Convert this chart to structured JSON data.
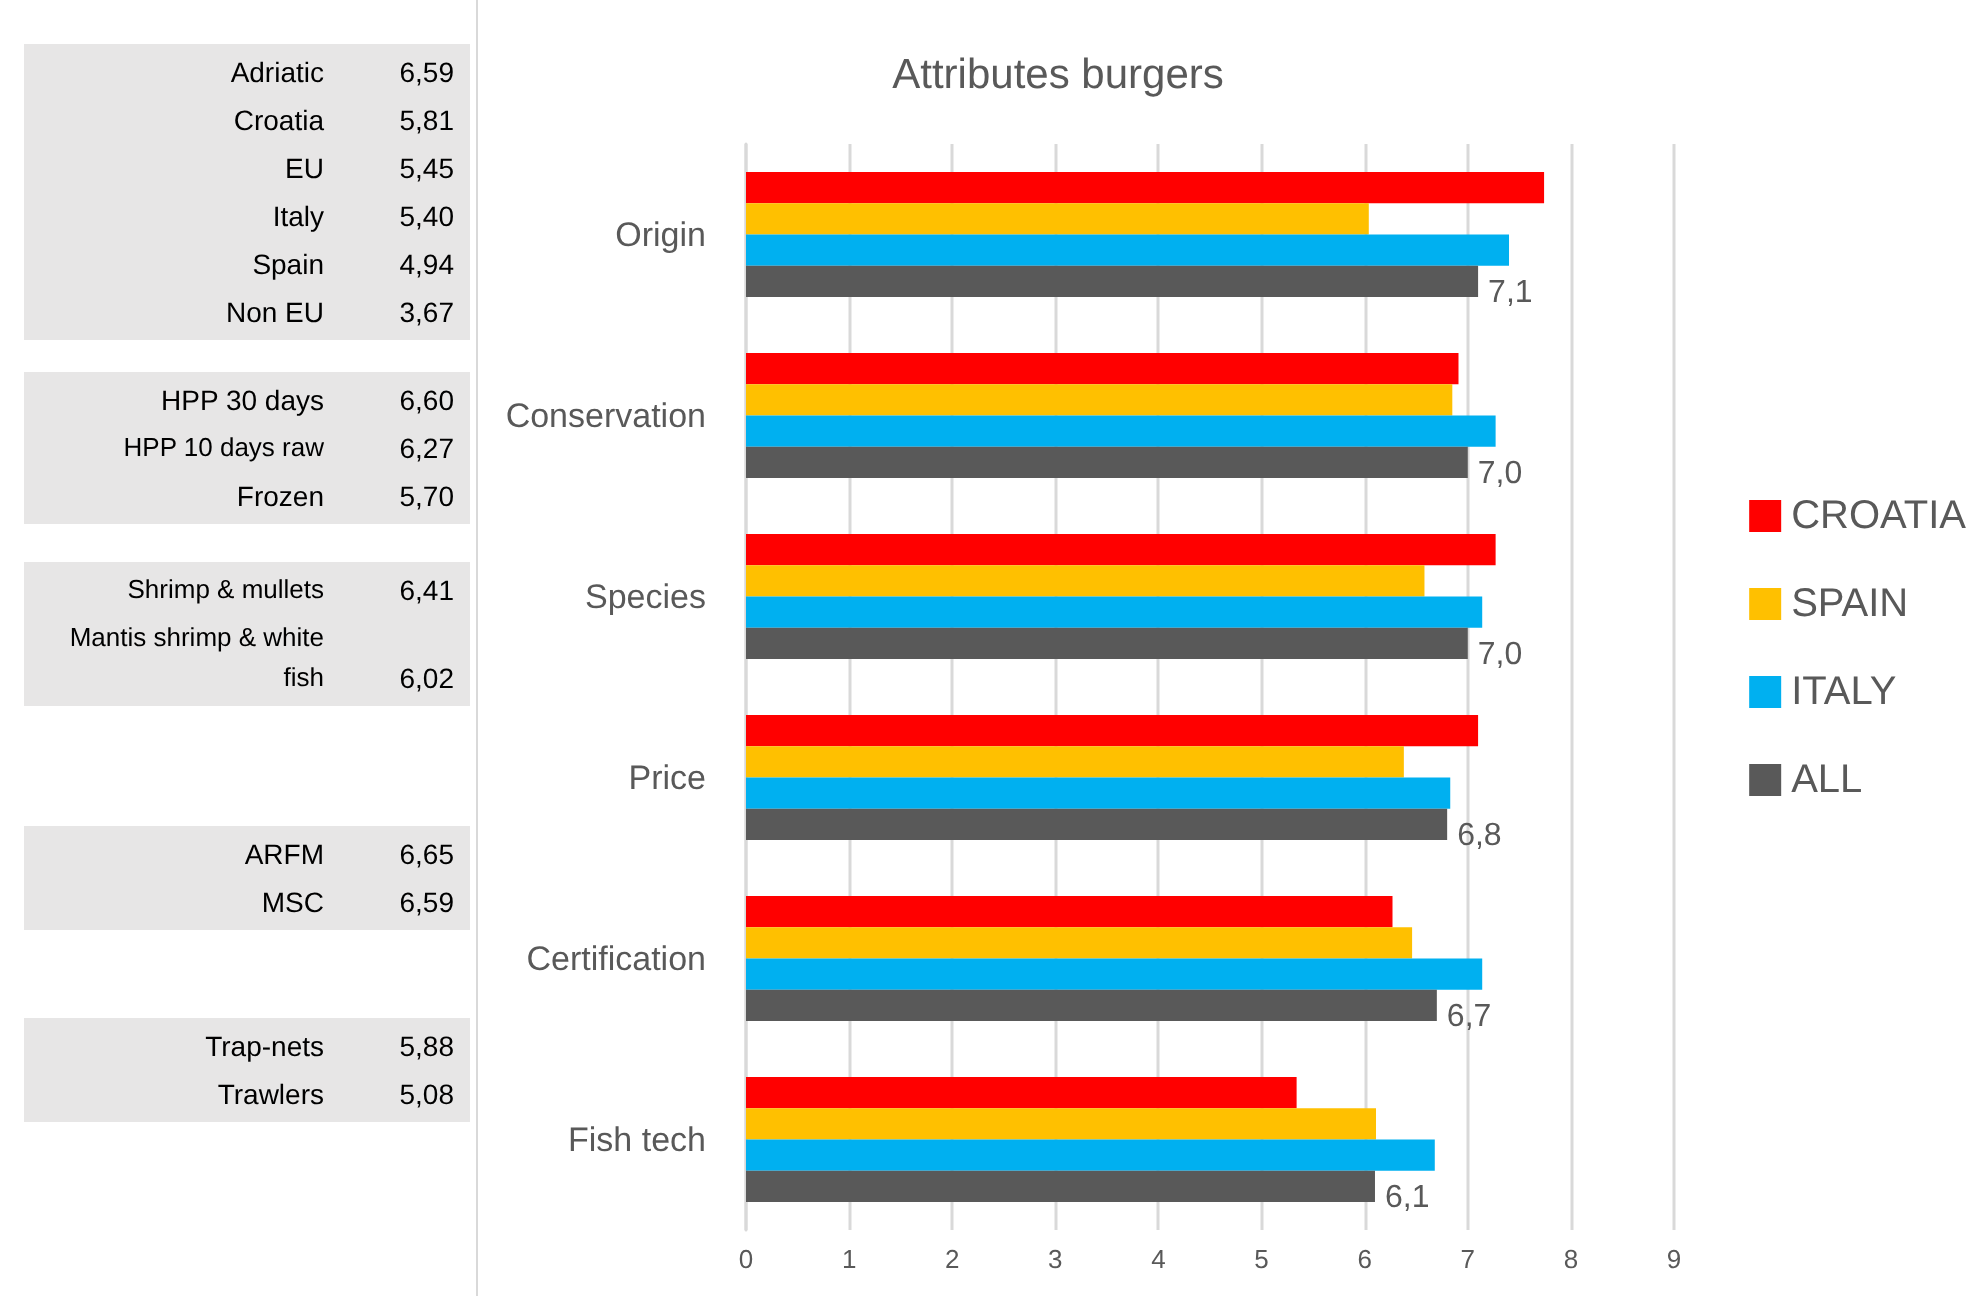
{
  "chart_data": [
    {
      "type": "other",
      "categories": [
        "Adriatic",
        "Croatia",
        "EU",
        "Italy",
        "Spain",
        "Non EU"
      ],
      "value_labels": [
        "6,59",
        "5,81",
        "5,45",
        "5,40",
        "4,94",
        "3,67"
      ]
    },
    {
      "type": "other",
      "categories": [
        "HPP 30 days",
        "HPP 10 days raw",
        "Frozen"
      ],
      "value_labels": [
        "6,60",
        "6,27",
        "5,70"
      ]
    },
    {
      "type": "other",
      "categories": [
        "Shrimp & mullets",
        "Mantis shrimp & white fish"
      ],
      "value_labels": [
        "6,41",
        "6,02"
      ]
    },
    {
      "type": "other",
      "categories": [
        "ARFM",
        "MSC"
      ],
      "value_labels": [
        "6,65",
        "6,59"
      ]
    },
    {
      "type": "other",
      "categories": [
        "Trap-nets",
        "Trawlers"
      ],
      "value_labels": [
        "5,88",
        "5,08"
      ]
    },
    {
      "type": "bar",
      "orientation": "horizontal",
      "title": "Attributes burgers",
      "categories": [
        "Origin",
        "Conservation",
        "Species",
        "Price",
        "Certification",
        "Fish tech"
      ],
      "xlim": [
        0,
        9
      ],
      "xticks": [
        0,
        1,
        2,
        3,
        4,
        5,
        6,
        7,
        8,
        9
      ],
      "grid": "x",
      "legend": "right",
      "series": [
        {
          "name": "CROATIA",
          "color": "#ff0000",
          "values": [
            7.74,
            6.91,
            7.27,
            7.1,
            6.27,
            5.34
          ]
        },
        {
          "name": "SPAIN",
          "color": "#ffc000",
          "values": [
            6.04,
            6.85,
            6.58,
            6.38,
            6.46,
            6.11
          ]
        },
        {
          "name": "ITALY",
          "color": "#00b0f0",
          "values": [
            7.4,
            7.27,
            7.14,
            6.83,
            7.14,
            6.68
          ]
        },
        {
          "name": "ALL",
          "color": "#595959",
          "values": [
            7.1,
            7.0,
            7.0,
            6.8,
            6.7,
            6.1
          ],
          "value_labels": [
            "7,1",
            "7,0",
            "7,0",
            "6,8",
            "6,7",
            "6,1"
          ]
        }
      ]
    }
  ]
}
